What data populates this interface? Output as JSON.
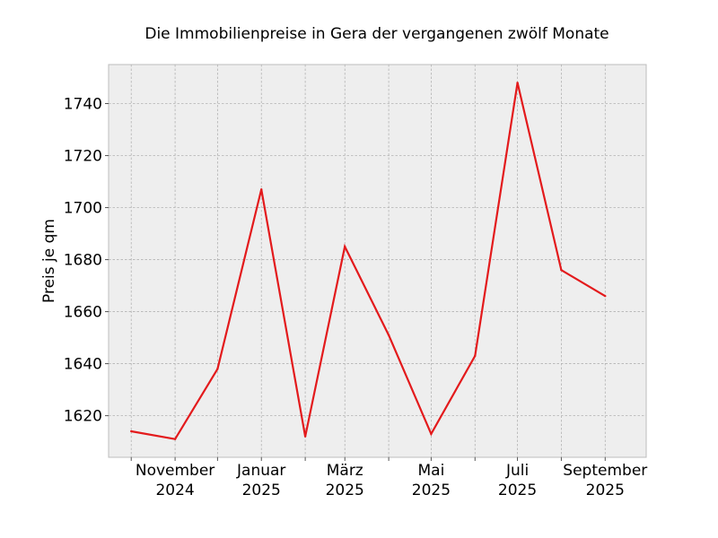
{
  "chart_data": {
    "type": "line",
    "title": "Die Immobilienpreise in Gera der vergangenen zwölf Monate",
    "xlabel": "",
    "ylabel": "Preis je qm",
    "x": [
      "2024-10",
      "2024-11",
      "2024-12",
      "2025-01",
      "2025-02",
      "2025-03",
      "2025-04",
      "2025-05",
      "2025-06",
      "2025-07",
      "2025-08",
      "2025-09"
    ],
    "series": [
      {
        "values": [
          1614,
          1611,
          1638,
          1707,
          1612,
          1685,
          1651,
          1613,
          1643,
          1748,
          1676,
          1666
        ]
      }
    ],
    "x_tick_labels": [
      {
        "x": "2024-11",
        "line1": "November",
        "line2": "2024"
      },
      {
        "x": "2025-01",
        "line1": "Januar",
        "line2": "2025"
      },
      {
        "x": "2025-03",
        "line1": "März",
        "line2": "2025"
      },
      {
        "x": "2025-05",
        "line1": "Mai",
        "line2": "2025"
      },
      {
        "x": "2025-07",
        "line1": "Juli",
        "line2": "2025"
      },
      {
        "x": "2025-09",
        "line1": "September",
        "line2": "2025"
      }
    ],
    "y_ticks": [
      1620,
      1640,
      1660,
      1680,
      1700,
      1720,
      1740
    ],
    "ylim": [
      1604,
      1755
    ],
    "xlim": [
      "2024-09-15",
      "2025-09-30"
    ],
    "grid": true,
    "line_color": "#e31a1c",
    "plot_background": "#eeeeee"
  }
}
